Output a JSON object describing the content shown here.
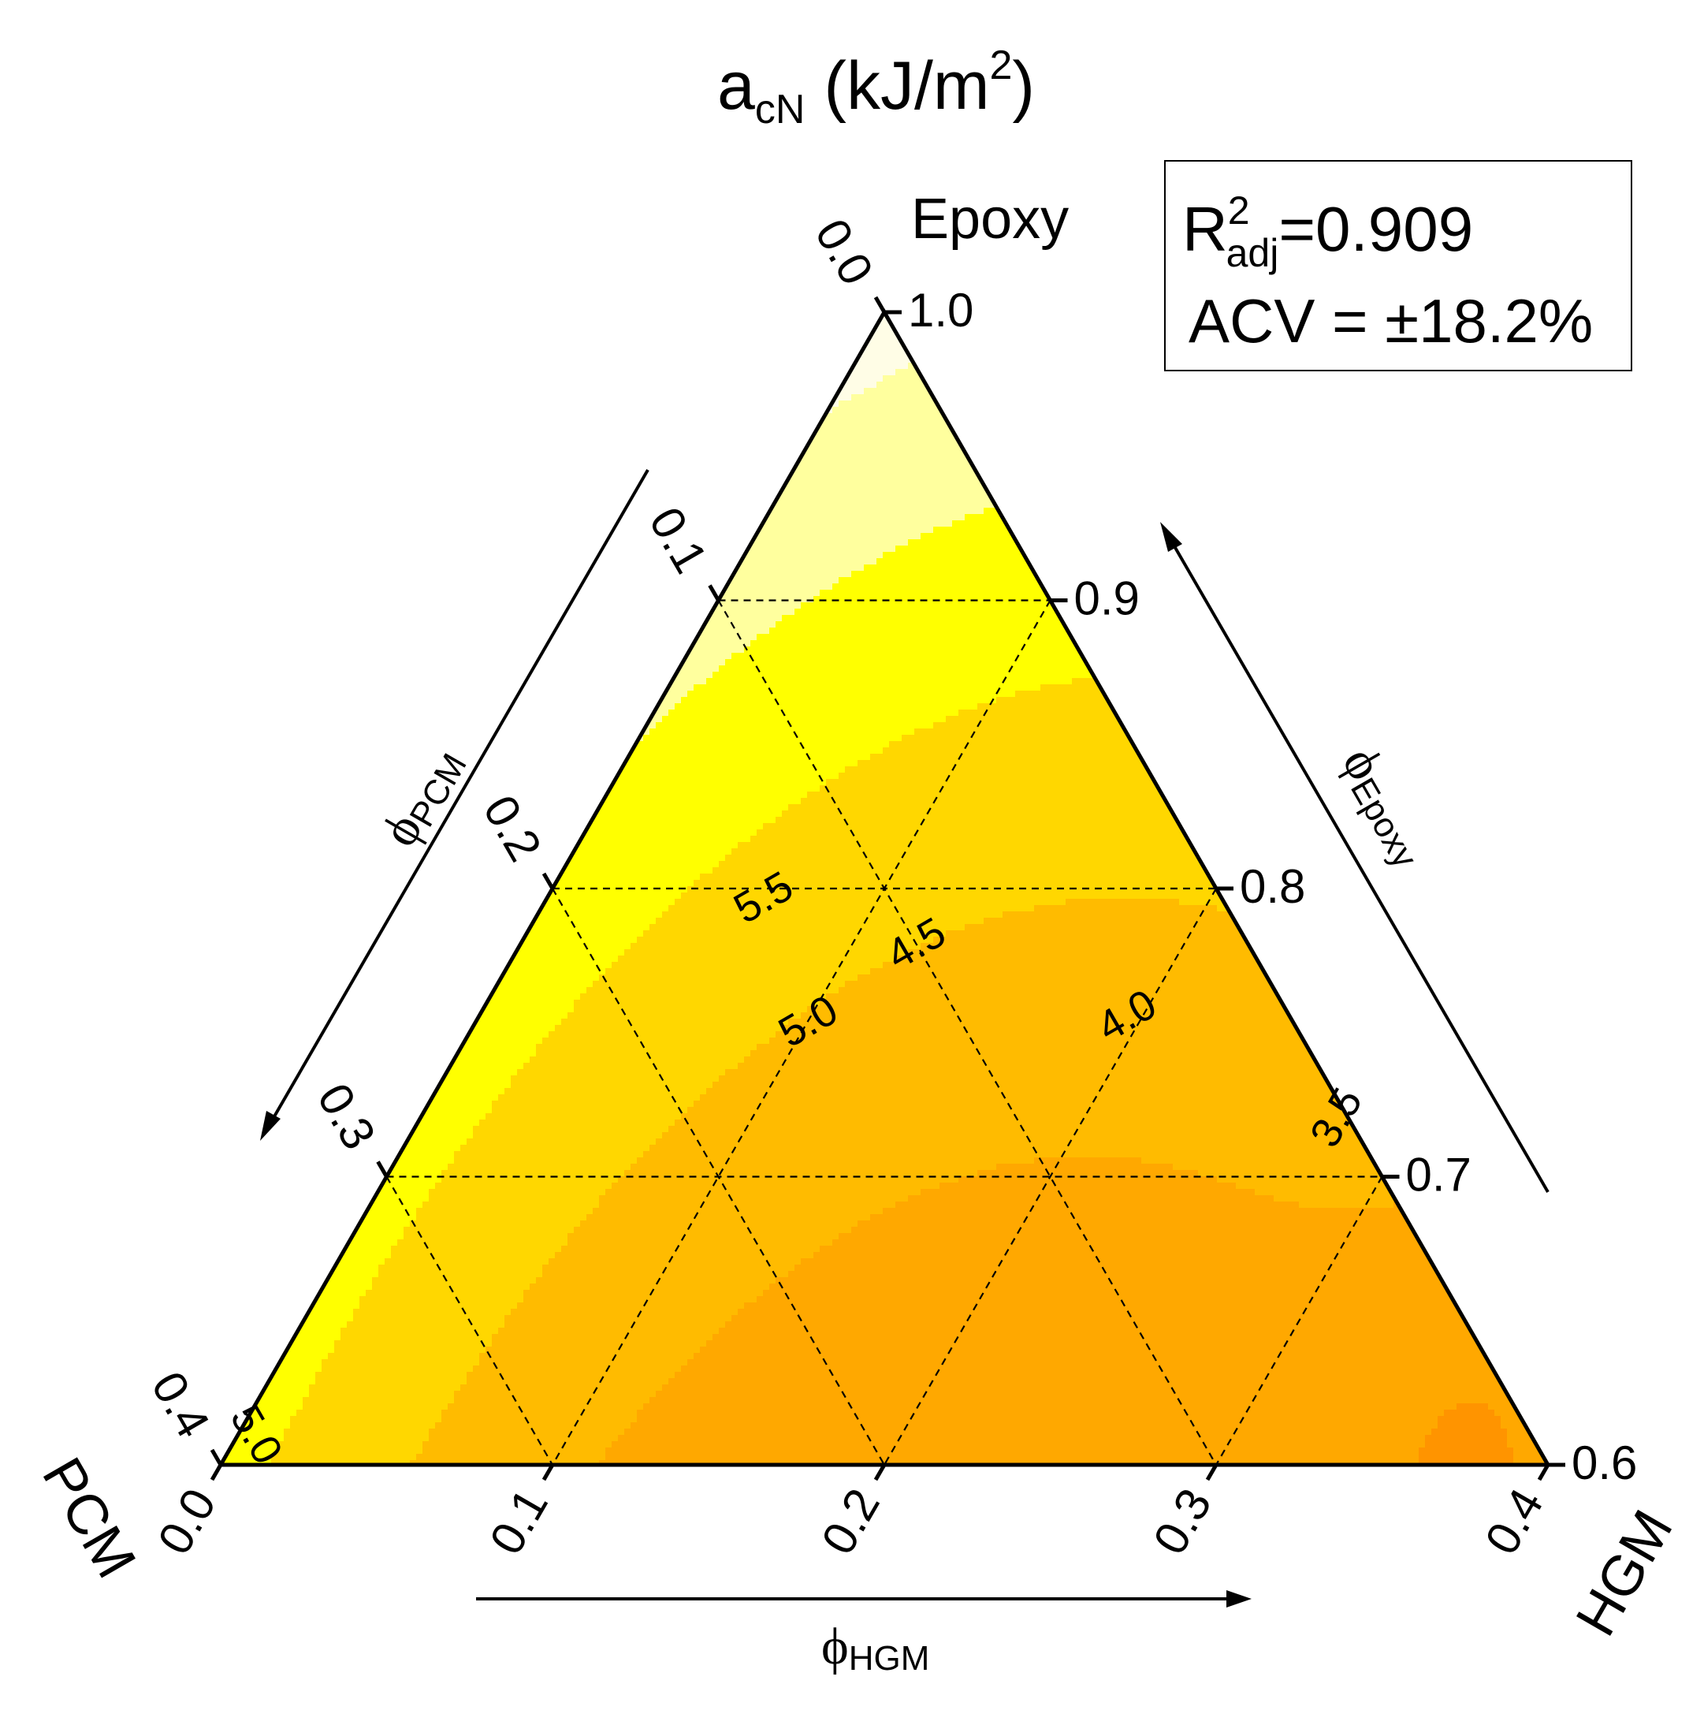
{
  "chart_data": {
    "type": "ternary-contour",
    "title": {
      "main": "a",
      "sub": "cN",
      "unit_open": "(kJ/m",
      "unit_sup": "2",
      "unit_close": ")"
    },
    "stats": {
      "r2_main": "R",
      "r2_sup": "2",
      "r2_sub": "adj",
      "r2_value": "=0.909",
      "acv": "ACV = ±18.2%"
    },
    "vertices": {
      "top": "Epoxy",
      "left": "PCM",
      "right": "HGM"
    },
    "axes": {
      "epoxy": {
        "label_main": "ϕ",
        "label_sub": "Epoxy",
        "range": [
          0.6,
          1.0
        ],
        "ticks": [
          {
            "v": 1.0,
            "label": "1.0"
          },
          {
            "v": 0.9,
            "label": "0.9"
          },
          {
            "v": 0.8,
            "label": "0.8"
          },
          {
            "v": 0.7,
            "label": "0.7"
          },
          {
            "v": 0.6,
            "label": "0.6"
          }
        ]
      },
      "pcm": {
        "label_main": "ϕ",
        "label_sub": "PCM",
        "range": [
          0.0,
          0.4
        ],
        "ticks": [
          {
            "v": 0.0,
            "label": "0.0"
          },
          {
            "v": 0.1,
            "label": "0.1"
          },
          {
            "v": 0.2,
            "label": "0.2"
          },
          {
            "v": 0.3,
            "label": "0.3"
          },
          {
            "v": 0.4,
            "label": "0.4"
          }
        ]
      },
      "hgm": {
        "label_main": "ϕ",
        "label_sub": "HGM",
        "range": [
          0.0,
          0.4
        ],
        "ticks": [
          {
            "v": 0.0,
            "label": "0.0"
          },
          {
            "v": 0.1,
            "label": "0.1"
          },
          {
            "v": 0.2,
            "label": "0.2"
          },
          {
            "v": 0.3,
            "label": "0.3"
          },
          {
            "v": 0.4,
            "label": "0.4"
          }
        ]
      }
    },
    "grid": true,
    "contour_labels": [
      {
        "label": "5.5",
        "pcm": 0.138,
        "hgm": 0.066
      },
      {
        "label": "5.0",
        "pcm": 0.146,
        "hgm": 0.101
      },
      {
        "label": "4.5",
        "pcm": 0.1,
        "hgm": 0.12
      },
      {
        "label": "4.0",
        "pcm": 0.049,
        "hgm": 0.196
      },
      {
        "label": "3.5",
        "pcm": 0.003,
        "hgm": 0.277
      },
      {
        "label": "5.0",
        "pcm": 0.385,
        "hgm": 0.005
      }
    ],
    "contour_levels": [
      6.5,
      6.0,
      5.5,
      5.0,
      4.5,
      4.0,
      3.5
    ],
    "colors": {
      "6.5+": "#fffde6",
      "6.0-6.5": "#ffff9e",
      "5.5-6.0": "#ffff00",
      "5.0-5.5": "#ffd700",
      "4.5-5.0": "#ffbb00",
      "4.0-4.5": "#ffa800",
      "3.5-4.0": "#ff9400",
      "3.0-3.5": "#ff8000",
      "2.5-3.0": "#ff6500",
      "<2.5": "#ff3600"
    }
  }
}
